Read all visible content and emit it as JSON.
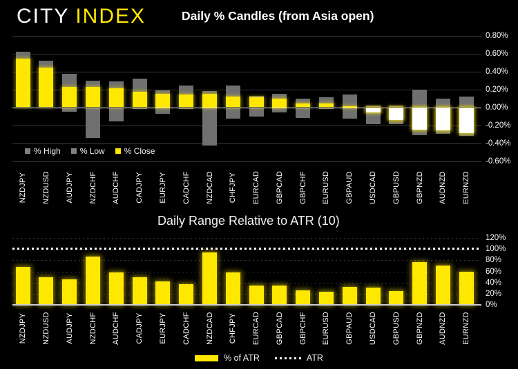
{
  "brand": {
    "city": "CITY",
    "index": "INDEX"
  },
  "colors": {
    "background": "#000000",
    "accent_yellow": "#FFE800",
    "high_low_gray": "#6F6F6F",
    "negative_close_body": "#FFFFFF",
    "gridline": "#383838",
    "zero_line": "#E8E8E8",
    "text": "#FFFFFF"
  },
  "chart_data": [
    {
      "type": "bar",
      "subtype": "high-low-close-candles",
      "title": "Daily % Candles (from Asia open)",
      "categories": [
        "NZDJPY",
        "NZDUSD",
        "AUDJPY",
        "NZDCHF",
        "AUDCHF",
        "CADJPY",
        "EURJPY",
        "CADCHF",
        "NZDCAD",
        "CHFJPY",
        "EURCAD",
        "GBPCAD",
        "GBPCHF",
        "EURUSD",
        "GBPAUD",
        "USDCAD",
        "GBPUSD",
        "GBPNZD",
        "AUDNZD",
        "EURNZD"
      ],
      "series": [
        {
          "name": "% High",
          "color": "#6F6F6F",
          "values": [
            0.62,
            0.52,
            0.37,
            0.3,
            0.29,
            0.32,
            0.19,
            0.24,
            0.18,
            0.24,
            0.13,
            0.15,
            0.1,
            0.11,
            0.14,
            0.02,
            0.02,
            0.2,
            0.1,
            0.12
          ]
        },
        {
          "name": "% Low",
          "color": "#6F6F6F",
          "values": [
            0.0,
            0.0,
            -0.05,
            -0.34,
            -0.16,
            -0.02,
            -0.07,
            -0.02,
            -0.43,
            -0.13,
            -0.1,
            -0.06,
            -0.12,
            -0.02,
            -0.13,
            -0.19,
            -0.19,
            -0.31,
            -0.3,
            -0.32
          ]
        },
        {
          "name": "% Close",
          "color": "#FFE800",
          "values": [
            0.54,
            0.44,
            0.23,
            0.23,
            0.21,
            0.17,
            0.15,
            0.14,
            0.15,
            0.12,
            0.11,
            0.1,
            0.04,
            0.04,
            0.01,
            -0.06,
            -0.14,
            -0.25,
            -0.26,
            -0.29
          ]
        }
      ],
      "ylim": [
        -0.6,
        0.8
      ],
      "yticks": [
        {
          "value": 0.8,
          "label": "0.80%"
        },
        {
          "value": 0.6,
          "label": "0.60%"
        },
        {
          "value": 0.4,
          "label": "0.40%"
        },
        {
          "value": 0.2,
          "label": "0.20%"
        },
        {
          "value": 0.0,
          "label": "0.00%"
        },
        {
          "value": -0.2,
          "label": "-0.20%"
        },
        {
          "value": -0.4,
          "label": "-0.40%"
        },
        {
          "value": -0.6,
          "label": "-0.60%"
        }
      ],
      "grid": true,
      "zero_line": true,
      "legend_position": "inside-bottom-left",
      "axis_side": "right"
    },
    {
      "type": "bar",
      "title": "Daily Range Relative to ATR (10)",
      "categories": [
        "NZDJPY",
        "NZDUSD",
        "AUDJPY",
        "NZDCHF",
        "AUDCHF",
        "CADJPY",
        "EURJPY",
        "CADCHF",
        "NZDCAD",
        "CHFJPY",
        "EURCAD",
        "GBPCAD",
        "GBPCHF",
        "EURUSD",
        "GBPAUD",
        "USDCAD",
        "GBPUSD",
        "GBPNZD",
        "AUDNZD",
        "EURNZD"
      ],
      "series": [
        {
          "name": "% of ATR",
          "color": "#FFE800",
          "values": [
            68,
            50,
            46,
            87,
            58,
            50,
            42,
            37,
            94,
            58,
            35,
            35,
            26,
            24,
            33,
            31,
            25,
            77,
            70,
            60
          ]
        }
      ],
      "atr_line": {
        "name": "ATR",
        "value": 101,
        "style": "dotted",
        "color": "#FFFFFF"
      },
      "ylim": [
        0,
        120
      ],
      "yticks": [
        {
          "value": 120,
          "label": "120%"
        },
        {
          "value": 100,
          "label": "100%"
        },
        {
          "value": 80,
          "label": "80%"
        },
        {
          "value": 60,
          "label": "60%"
        },
        {
          "value": 40,
          "label": "40%"
        },
        {
          "value": 20,
          "label": "20%"
        },
        {
          "value": 0,
          "label": "0%"
        }
      ],
      "grid": "dotted",
      "legend_position": "bottom-center",
      "axis_side": "right"
    }
  ]
}
